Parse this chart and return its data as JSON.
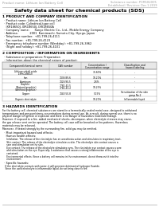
{
  "header_left": "Product name: Lithium Ion Battery Cell",
  "header_right_line1": "Substance number: PCM50UD05",
  "header_right_line2": "Established / Revision: Dec.1.2019",
  "title": "Safety data sheet for chemical products (SDS)",
  "section1_title": "1 PRODUCT AND COMPANY IDENTIFICATION",
  "section1_lines": [
    "  · Product name: Lithium Ion Battery Cell",
    "  · Product code: Cylindrical-type cell",
    "    IXR18650J, IXR18650J, IXR18650A",
    "  · Company name:      Sanyo Electric Co., Ltd., Mobile Energy Company",
    "  · Address:             2001  Kamimachi, Sumoto-City, Hyogo, Japan",
    "  · Telephone number:  +81-799-26-4111",
    "  · Fax number:  +81-799-26-4123",
    "  · Emergency telephone number (Weekday): +81-799-26-3962",
    "    (Night and holiday): +81-799-26-4101"
  ],
  "section2_title": "2 COMPOSITION / INFORMATION ON INGREDIENTS",
  "section2_intro": "  · Substance or preparation: Preparation",
  "section2_table_header": "  · Information about the chemical nature of product:",
  "table_col_headers": [
    "Component/chemical name",
    "CAS number",
    "Concentration /\nConcentration range",
    "Classification and\nhazard labeling"
  ],
  "table_rows": [
    [
      "Lithium cobalt oxide\n(LiMnCoNiO2)",
      "-",
      "30-60%",
      "-"
    ],
    [
      "Iron",
      "7439-89-6",
      "10-20%",
      "-"
    ],
    [
      "Aluminum",
      "7429-90-5",
      "2-6%",
      "-"
    ],
    [
      "Graphite\n(Natural graphite)\n(Artificial graphite)",
      "7782-42-5\n7782-43-2",
      "10-25%",
      "-"
    ],
    [
      "Copper",
      "7440-50-8",
      "5-15%",
      "Sensitization of the skin\ngroup No.2"
    ],
    [
      "Organic electrolyte",
      "-",
      "10-20%",
      "Inflammable liquid"
    ]
  ],
  "section3_title": "3 HAZARDS IDENTIFICATION",
  "section3_text": [
    "For the battery cell, chemical substances are stored in a hermetically sealed metal case, designed to withstand",
    "temperatures and pressure/stress-concentrations during normal use. As a result, during normal use, there is no",
    "physical danger of ignition or explosion and there is no danger of hazardous materials leakage.",
    "However, if exposed to a fire, added mechanical shocks, decompose, when electrolyte stresses may cause,",
    "the gas release vent can be operated. The battery cell case will be breached or fire-patterns. Hazardous",
    "materials may be released.",
    "Moreover, if heated strongly by the surrounding fire, solid gas may be emitted."
  ],
  "section3_bullet1": "  · Most important hazard and effects:",
  "section3_human": "    Human health effects:",
  "section3_human_lines": [
    "      Inhalation: The release of the electrolyte has an anesthesia action and stimulates in respiratory tract.",
    "      Skin contact: The release of the electrolyte stimulates a skin. The electrolyte skin contact causes a",
    "      sore and stimulation on the skin.",
    "      Eye contact: The release of the electrolyte stimulates eyes. The electrolyte eye contact causes a sore",
    "      and stimulation on the eye. Especially, a substance that causes a strong inflammation of the eye is",
    "      contained.",
    "      Environmental effects: Since a battery cell remains in the environment, do not throw out it into the",
    "      environment."
  ],
  "section3_bullet2": "  · Specific hazards:",
  "section3_specific_lines": [
    "    If the electrolyte contacts with water, it will generate detrimental hydrogen fluoride.",
    "    Since the used electrolyte is inflammable liquid, do not bring close to fire."
  ],
  "bg_color": "#ffffff",
  "text_color": "#000000",
  "header_color": "#888888",
  "table_border_color": "#999999"
}
